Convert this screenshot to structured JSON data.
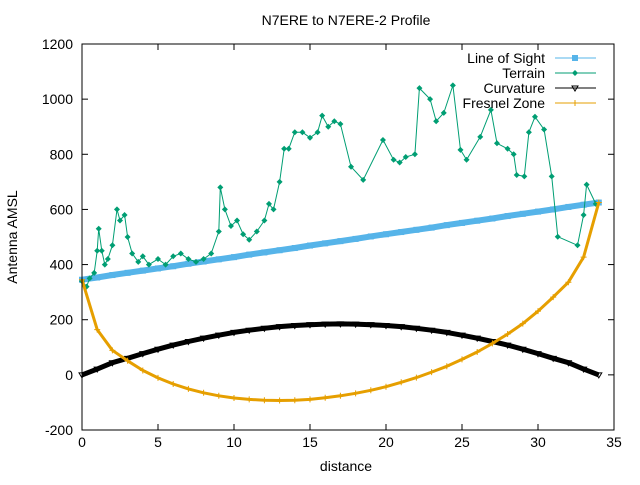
{
  "chart_data": {
    "type": "line",
    "title": "N7ERE to N7ERE-2 Profile",
    "xlabel": "distance",
    "ylabel": "Antenna AMSL",
    "xlim": [
      0,
      35
    ],
    "ylim": [
      -200,
      1200
    ],
    "xticks": [
      "0",
      "5",
      "10",
      "15",
      "20",
      "25",
      "30",
      "35"
    ],
    "yticks": [
      "-200",
      "0",
      "200",
      "400",
      "600",
      "800",
      "1000",
      "1200"
    ],
    "grid": false,
    "legend_position": "top-right",
    "series": [
      {
        "name": "Line of Sight",
        "color": "#56b4e9",
        "marker": "square",
        "x": [
          0,
          1,
          2,
          3,
          4,
          5,
          6,
          7,
          8,
          9,
          10,
          11,
          12,
          13,
          14,
          15,
          16,
          17,
          18,
          19,
          20,
          21,
          22,
          23,
          24,
          25,
          26,
          27,
          28,
          29,
          30,
          31,
          32,
          33,
          34
        ],
        "y": [
          345,
          353,
          362,
          370,
          378,
          386,
          394,
          403,
          411,
          419,
          427,
          436,
          444,
          452,
          460,
          469,
          477,
          485,
          493,
          502,
          510,
          518,
          526,
          534,
          543,
          551,
          559,
          567,
          576,
          584,
          592,
          600,
          609,
          617,
          625
        ]
      },
      {
        "name": "Terrain",
        "color": "#009e73",
        "marker": "diamond",
        "x": [
          0,
          0.3,
          0.5,
          0.8,
          1.0,
          1.1,
          1.3,
          1.5,
          1.7,
          2.0,
          2.3,
          2.5,
          2.8,
          3.0,
          3.3,
          3.7,
          4.0,
          4.4,
          5.0,
          5.5,
          6.0,
          6.5,
          7.0,
          7.5,
          8.0,
          8.5,
          9.0,
          9.1,
          9.4,
          9.8,
          10.2,
          10.6,
          11.0,
          11.5,
          12.0,
          12.3,
          12.6,
          13.0,
          13.3,
          13.6,
          14.0,
          14.5,
          15.0,
          15.5,
          15.8,
          16.2,
          16.6,
          17.0,
          17.7,
          18.5,
          19.8,
          20.5,
          20.9,
          21.3,
          21.9,
          22.2,
          22.9,
          23.3,
          23.8,
          24.4,
          24.9,
          25.3,
          26.2,
          26.9,
          27.3,
          28.0,
          28.4,
          28.6,
          29.1,
          29.4,
          29.8,
          30.4,
          30.9,
          31.3,
          32.6,
          33.0,
          33.2,
          33.8
        ],
        "y": [
          340,
          320,
          350,
          370,
          450,
          530,
          450,
          400,
          420,
          470,
          600,
          560,
          580,
          500,
          440,
          410,
          430,
          400,
          420,
          400,
          430,
          440,
          420,
          410,
          420,
          440,
          520,
          680,
          600,
          540,
          560,
          510,
          490,
          520,
          560,
          620,
          600,
          700,
          820,
          820,
          880,
          880,
          860,
          880,
          940,
          900,
          920,
          910,
          755,
          707,
          852,
          780,
          770,
          790,
          800,
          1040,
          1000,
          920,
          950,
          1050,
          816,
          780,
          863,
          961,
          840,
          820,
          800,
          725,
          720,
          880,
          936,
          890,
          720,
          501,
          470,
          580,
          690,
          620
        ]
      },
      {
        "name": "Curvature",
        "color": "#000000",
        "marker": "triangle-down",
        "x": [
          0,
          1,
          2,
          3,
          4,
          5,
          6,
          7,
          8,
          9,
          10,
          11,
          12,
          13,
          14,
          15,
          16,
          17,
          18,
          19,
          20,
          21,
          22,
          23,
          24,
          25,
          26,
          27,
          28,
          29,
          30,
          31,
          32,
          33,
          34
        ],
        "y": [
          0,
          21,
          44,
          60,
          77,
          93,
          108,
          121,
          133,
          144,
          154,
          162,
          169,
          175,
          179,
          182,
          184,
          185,
          184,
          182,
          179,
          175,
          169,
          162,
          154,
          144,
          133,
          121,
          108,
          93,
          77,
          60,
          44,
          21,
          0
        ]
      },
      {
        "name": "Fresnel Zone",
        "color": "#e69f00",
        "marker": "plus",
        "x": [
          0,
          1,
          2,
          3,
          4,
          5,
          6,
          7,
          8,
          9,
          10,
          11,
          12,
          13,
          14,
          15,
          16,
          17,
          18,
          19,
          20,
          21,
          22,
          23,
          24,
          25,
          26,
          27,
          28,
          29,
          30,
          31,
          32,
          33,
          34
        ],
        "y": [
          345,
          164,
          89,
          51,
          16,
          -11,
          -33,
          -51,
          -65,
          -76,
          -84,
          -89,
          -92,
          -93,
          -92,
          -89,
          -83,
          -76,
          -67,
          -56,
          -43,
          -27,
          -10,
          10,
          31,
          56,
          83,
          114,
          148,
          186,
          231,
          282,
          336,
          427,
          625
        ]
      }
    ]
  }
}
